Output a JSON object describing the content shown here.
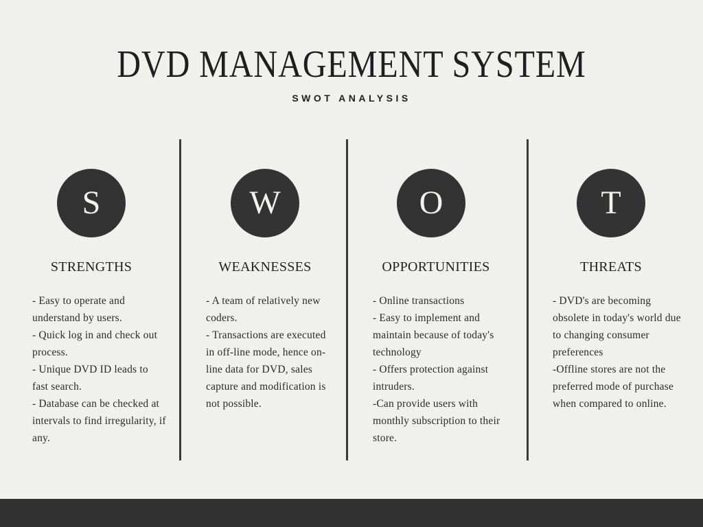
{
  "title": "DVD MANAGEMENT SYSTEM",
  "subtitle": "SWOT ANALYSIS",
  "columns": [
    {
      "letter": "S",
      "heading": "STRENGTHS",
      "items": [
        "- Easy to operate and understand by users.",
        "- Quick log in and check out process.",
        "- Unique DVD ID leads to fast search.",
        "- Database can be checked at intervals to find irregularity, if any."
      ]
    },
    {
      "letter": "W",
      "heading": "WEAKNESSES",
      "items": [
        "- A team of relatively new coders.",
        "- Transactions are executed in off-line mode, hence on-line data for DVD, sales capture and modification is not possible."
      ]
    },
    {
      "letter": "O",
      "heading": "OPPORTUNITIES",
      "items": [
        "- Online transactions",
        "- Easy to implement and maintain because of today's technology",
        "- Offers protection against intruders.",
        "-Can provide users with monthly subscription to their store."
      ]
    },
    {
      "letter": "T",
      "heading": "THREATS",
      "items": [
        "- DVD's are becoming obsolete in today's world due to changing consumer preferences",
        "-Offline stores are not the preferred mode of purchase when compared to online."
      ]
    }
  ],
  "colors": {
    "background": "#f0f0ec",
    "circle": "#333333",
    "divider": "#3a3a3a",
    "footer": "#313131"
  }
}
